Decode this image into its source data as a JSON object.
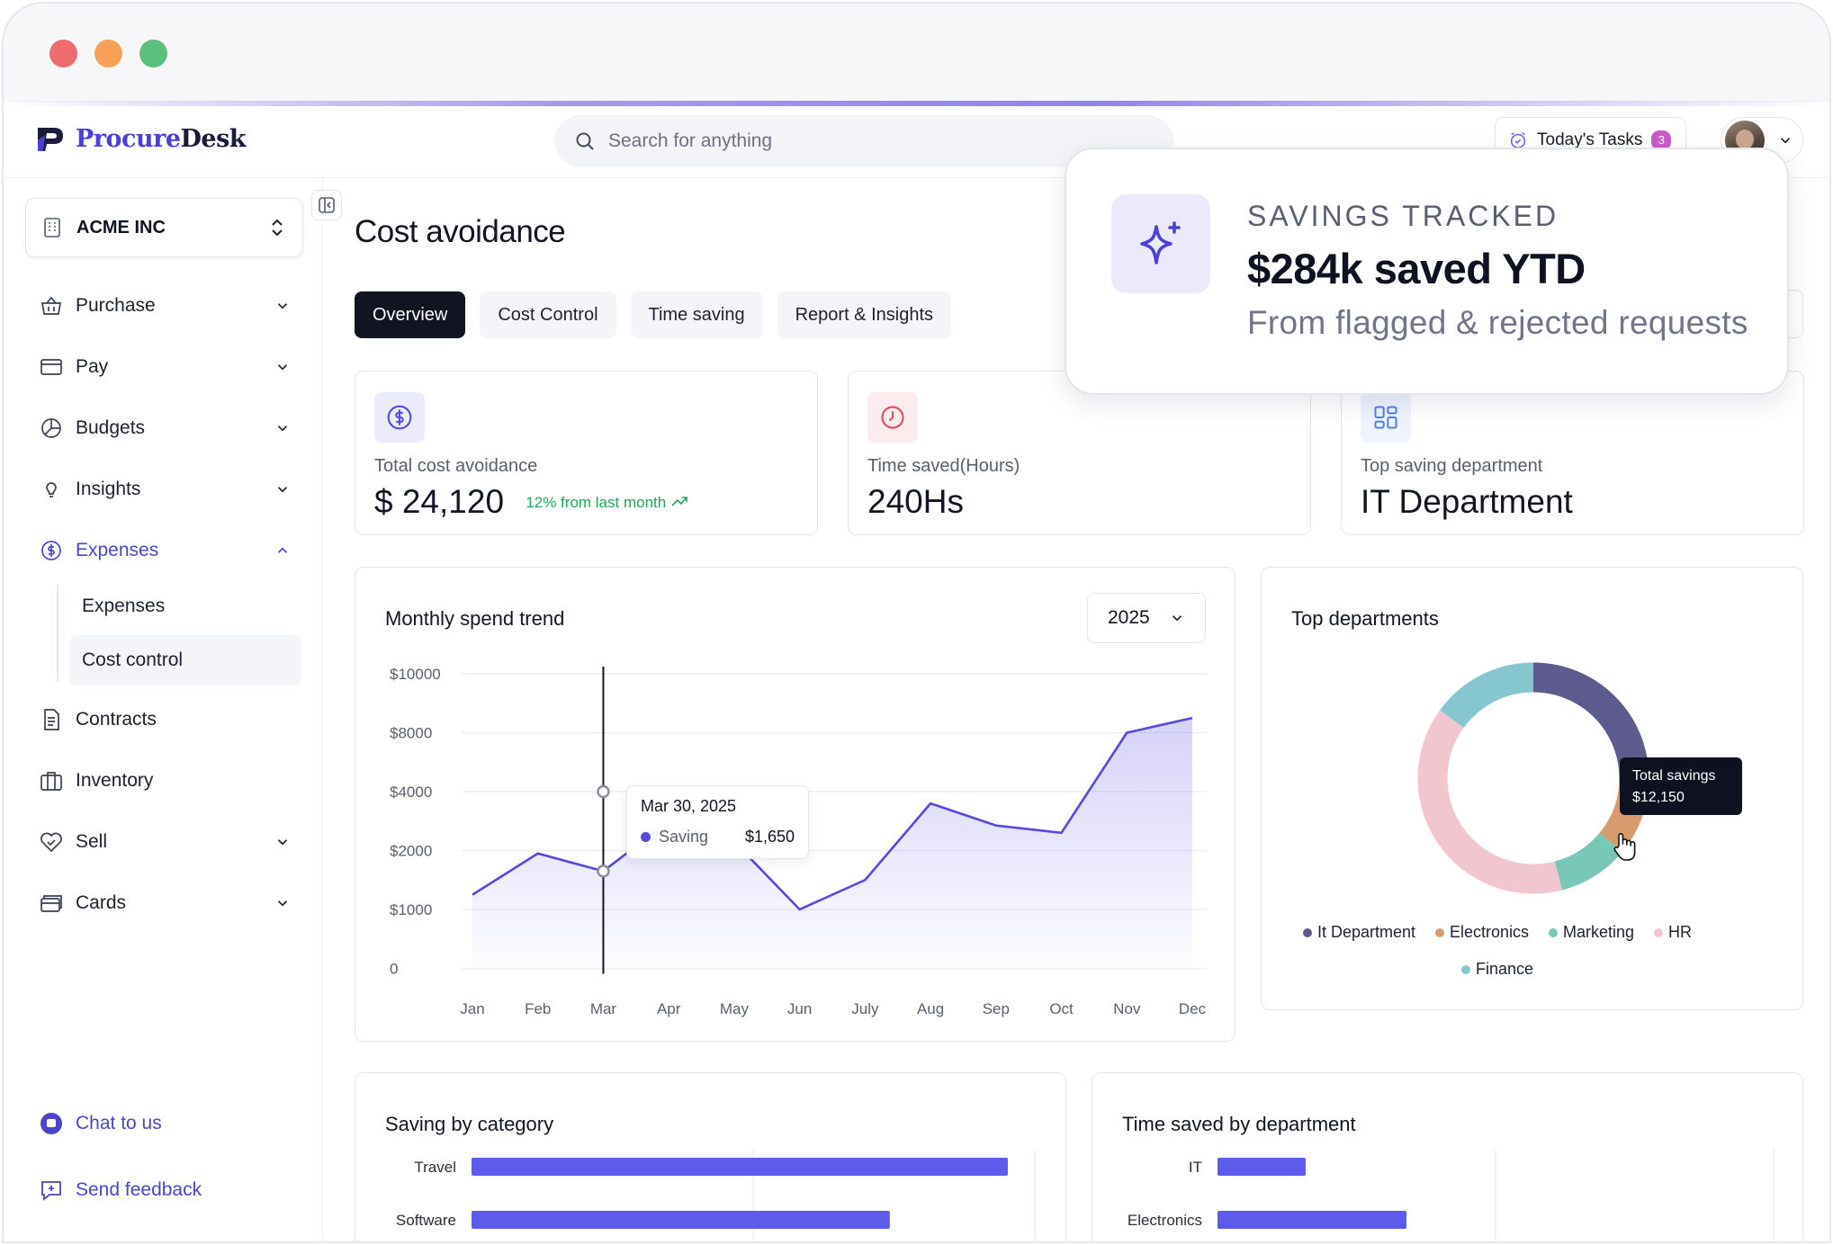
{
  "app": {
    "brand_first": "Procure",
    "brand_second": "Desk"
  },
  "header": {
    "search_placeholder": "Search for anything",
    "tasks_label": "Today's Tasks",
    "tasks_count": "3"
  },
  "sidebar": {
    "org_name": "ACME INC",
    "items": [
      {
        "label": "Purchase",
        "icon": "basket-icon"
      },
      {
        "label": "Pay",
        "icon": "credit-card-icon"
      },
      {
        "label": "Budgets",
        "icon": "pie-chart-icon"
      },
      {
        "label": "Insights",
        "icon": "lightbulb-icon"
      },
      {
        "label": "Expenses",
        "icon": "dollar-circle-icon"
      },
      {
        "label": "Contracts",
        "icon": "document-icon"
      },
      {
        "label": "Inventory",
        "icon": "box-icon"
      },
      {
        "label": "Sell",
        "icon": "tag-icon"
      },
      {
        "label": "Cards",
        "icon": "cards-icon"
      }
    ],
    "expenses_sub": [
      "Expenses",
      "Cost control"
    ],
    "chat_label": "Chat to us",
    "feedback_label": "Send feedback"
  },
  "main": {
    "title": "Cost avoidance",
    "tabs": [
      "Overview",
      "Cost Control",
      "Time saving",
      "Report & Insights"
    ],
    "kpis": [
      {
        "label": "Total cost avoidance",
        "value": "$ 24,120",
        "delta": "12% from last month"
      },
      {
        "label": "Time saved(Hours)",
        "value": "240Hs"
      },
      {
        "label": "Top saving department",
        "value": "IT Department"
      }
    ]
  },
  "trend": {
    "title": "Monthly spend trend",
    "year": "2025",
    "tooltip": {
      "date": "Mar 30, 2025",
      "series": "Saving",
      "value": "$1,650"
    }
  },
  "departments": {
    "title": "Top departments",
    "tooltip_label": "Total savings",
    "tooltip_value": "$12,150",
    "legend": [
      {
        "label": "It Department",
        "color": "#5d5b8d"
      },
      {
        "label": "Electronics",
        "color": "#d79b6e"
      },
      {
        "label": "Marketing",
        "color": "#79c7b9"
      },
      {
        "label": "HR",
        "color": "#f1c6ce"
      },
      {
        "label": "Finance",
        "color": "#86c6cf"
      }
    ]
  },
  "category": {
    "title": "Saving by category"
  },
  "time_dept": {
    "title": "Time saved by department"
  },
  "popup": {
    "kicker": "SAVINGS TRACKED",
    "headline": "$284k saved YTD",
    "sub": "From flagged & rejected requests"
  },
  "colors": {
    "accent": "#4b45cc",
    "series": "#5549e0",
    "bar": "#5c5bea"
  },
  "chart_data": [
    {
      "type": "area",
      "title": "Monthly spend trend",
      "categories": [
        "Jan",
        "Feb",
        "Mar",
        "Apr",
        "May",
        "Jun",
        "July",
        "Aug",
        "Sep",
        "Oct",
        "Nov",
        "Dec"
      ],
      "y_tick_labels": [
        "0",
        "$1000",
        "$2000",
        "$4000",
        "$8000",
        "$10000"
      ],
      "series": [
        {
          "name": "Saving",
          "values": [
            1250,
            1950,
            1650,
            3000,
            2300,
            1000,
            1500,
            3600,
            2850,
            2600,
            8000,
            8500
          ]
        }
      ],
      "grid": true
    },
    {
      "type": "pie",
      "title": "Top departments",
      "categories": [
        "It Department",
        "Electronics",
        "Marketing",
        "HR",
        "Finance"
      ],
      "values": [
        26,
        10,
        10,
        39,
        15
      ]
    },
    {
      "type": "bar",
      "title": "Saving by category",
      "categories": [
        "Travel",
        "Software"
      ],
      "values": [
        100,
        78
      ]
    },
    {
      "type": "bar",
      "title": "Time saved by department",
      "categories": [
        "IT",
        "Electronics"
      ],
      "values": [
        14,
        30
      ]
    }
  ]
}
